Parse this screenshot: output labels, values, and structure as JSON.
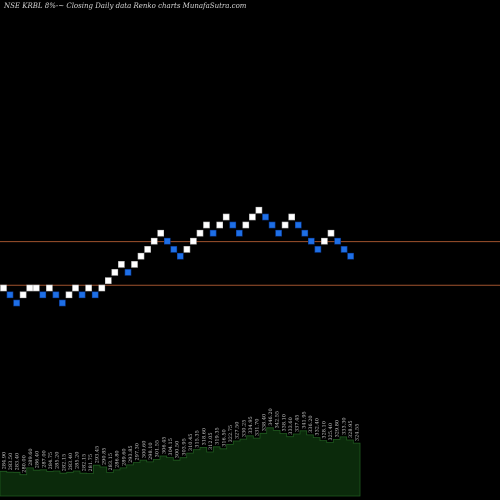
{
  "chart_data": {
    "type": "renko",
    "title": "NSE KRBL  8%-~  Closing Daily data  Renko  charts MunafaSutra.com",
    "colors": {
      "background": "#000000",
      "up_brick": "#ffffff",
      "down_brick": "#1e6fe6",
      "down_brick_edge": "#0b3c99",
      "reference_line": "#a0522d",
      "volume_fill": "#0b2a0b",
      "volume_stroke": "#1f5a1f"
    },
    "reference_lines": [
      {
        "price": 329.2
      },
      {
        "price": 307.4
      }
    ],
    "price_range": [
      200,
      450
    ],
    "bricks": [
      {
        "price": 306.0,
        "dir": "up"
      },
      {
        "price": 302.6,
        "dir": "down"
      },
      {
        "price": 298.5,
        "dir": "down"
      },
      {
        "price": 302.6,
        "dir": "up"
      },
      {
        "price": 306.0,
        "dir": "up"
      },
      {
        "price": 306.0,
        "dir": "up"
      },
      {
        "price": 302.6,
        "dir": "down"
      },
      {
        "price": 306.0,
        "dir": "up"
      },
      {
        "price": 302.6,
        "dir": "down"
      },
      {
        "price": 298.5,
        "dir": "down"
      },
      {
        "price": 302.6,
        "dir": "up"
      },
      {
        "price": 306.0,
        "dir": "up"
      },
      {
        "price": 302.6,
        "dir": "down"
      },
      {
        "price": 306.0,
        "dir": "up"
      },
      {
        "price": 302.6,
        "dir": "down"
      },
      {
        "price": 306.0,
        "dir": "up"
      },
      {
        "price": 309.7,
        "dir": "up"
      },
      {
        "price": 313.8,
        "dir": "up"
      },
      {
        "price": 317.8,
        "dir": "up"
      },
      {
        "price": 313.8,
        "dir": "down"
      },
      {
        "price": 317.8,
        "dir": "up"
      },
      {
        "price": 321.9,
        "dir": "up"
      },
      {
        "price": 325.3,
        "dir": "up"
      },
      {
        "price": 329.4,
        "dir": "up"
      },
      {
        "price": 333.4,
        "dir": "up"
      },
      {
        "price": 329.4,
        "dir": "down"
      },
      {
        "price": 325.3,
        "dir": "down"
      },
      {
        "price": 321.9,
        "dir": "down"
      },
      {
        "price": 325.3,
        "dir": "up"
      },
      {
        "price": 329.4,
        "dir": "up"
      },
      {
        "price": 333.4,
        "dir": "up"
      },
      {
        "price": 337.5,
        "dir": "up"
      },
      {
        "price": 333.4,
        "dir": "down"
      },
      {
        "price": 337.5,
        "dir": "up"
      },
      {
        "price": 341.5,
        "dir": "up"
      },
      {
        "price": 337.5,
        "dir": "down"
      },
      {
        "price": 333.4,
        "dir": "down"
      },
      {
        "price": 337.5,
        "dir": "up"
      },
      {
        "price": 341.5,
        "dir": "up"
      },
      {
        "price": 344.9,
        "dir": "up"
      },
      {
        "price": 341.5,
        "dir": "down"
      },
      {
        "price": 337.5,
        "dir": "down"
      },
      {
        "price": 333.4,
        "dir": "down"
      },
      {
        "price": 337.5,
        "dir": "up"
      },
      {
        "price": 341.5,
        "dir": "up"
      },
      {
        "price": 337.5,
        "dir": "down"
      },
      {
        "price": 333.4,
        "dir": "down"
      },
      {
        "price": 329.4,
        "dir": "down"
      },
      {
        "price": 325.3,
        "dir": "down"
      },
      {
        "price": 329.4,
        "dir": "up"
      },
      {
        "price": 333.4,
        "dir": "up"
      },
      {
        "price": 329.4,
        "dir": "down"
      },
      {
        "price": 325.3,
        "dir": "down"
      },
      {
        "price": 321.9,
        "dir": "down"
      }
    ],
    "volume_labels": [
      "284.90",
      "283.50",
      "283.40",
      "280.00",
      "289.60",
      "286.40",
      "287.00",
      "284.75",
      "285.20",
      "282.15",
      "283.40",
      "285.20",
      "282.15",
      "281.75",
      "293.45",
      "290.85",
      "283.15",
      "286.80",
      "289.60",
      "293.85",
      "297.30",
      "300.60",
      "298.10",
      "301.55",
      "306.45",
      "304.15",
      "300.50",
      "303.95",
      "310.45",
      "315.35",
      "318.60",
      "312.05",
      "319.35",
      "316.50",
      "322.75",
      "327.50",
      "330.25",
      "334.95",
      "331.70",
      "338.40",
      "346.20",
      "342.55",
      "338.10",
      "333.60",
      "337.45",
      "341.95",
      "336.20",
      "332.40",
      "328.10",
      "325.40",
      "329.80",
      "333.30",
      "328.95",
      "324.55"
    ]
  }
}
